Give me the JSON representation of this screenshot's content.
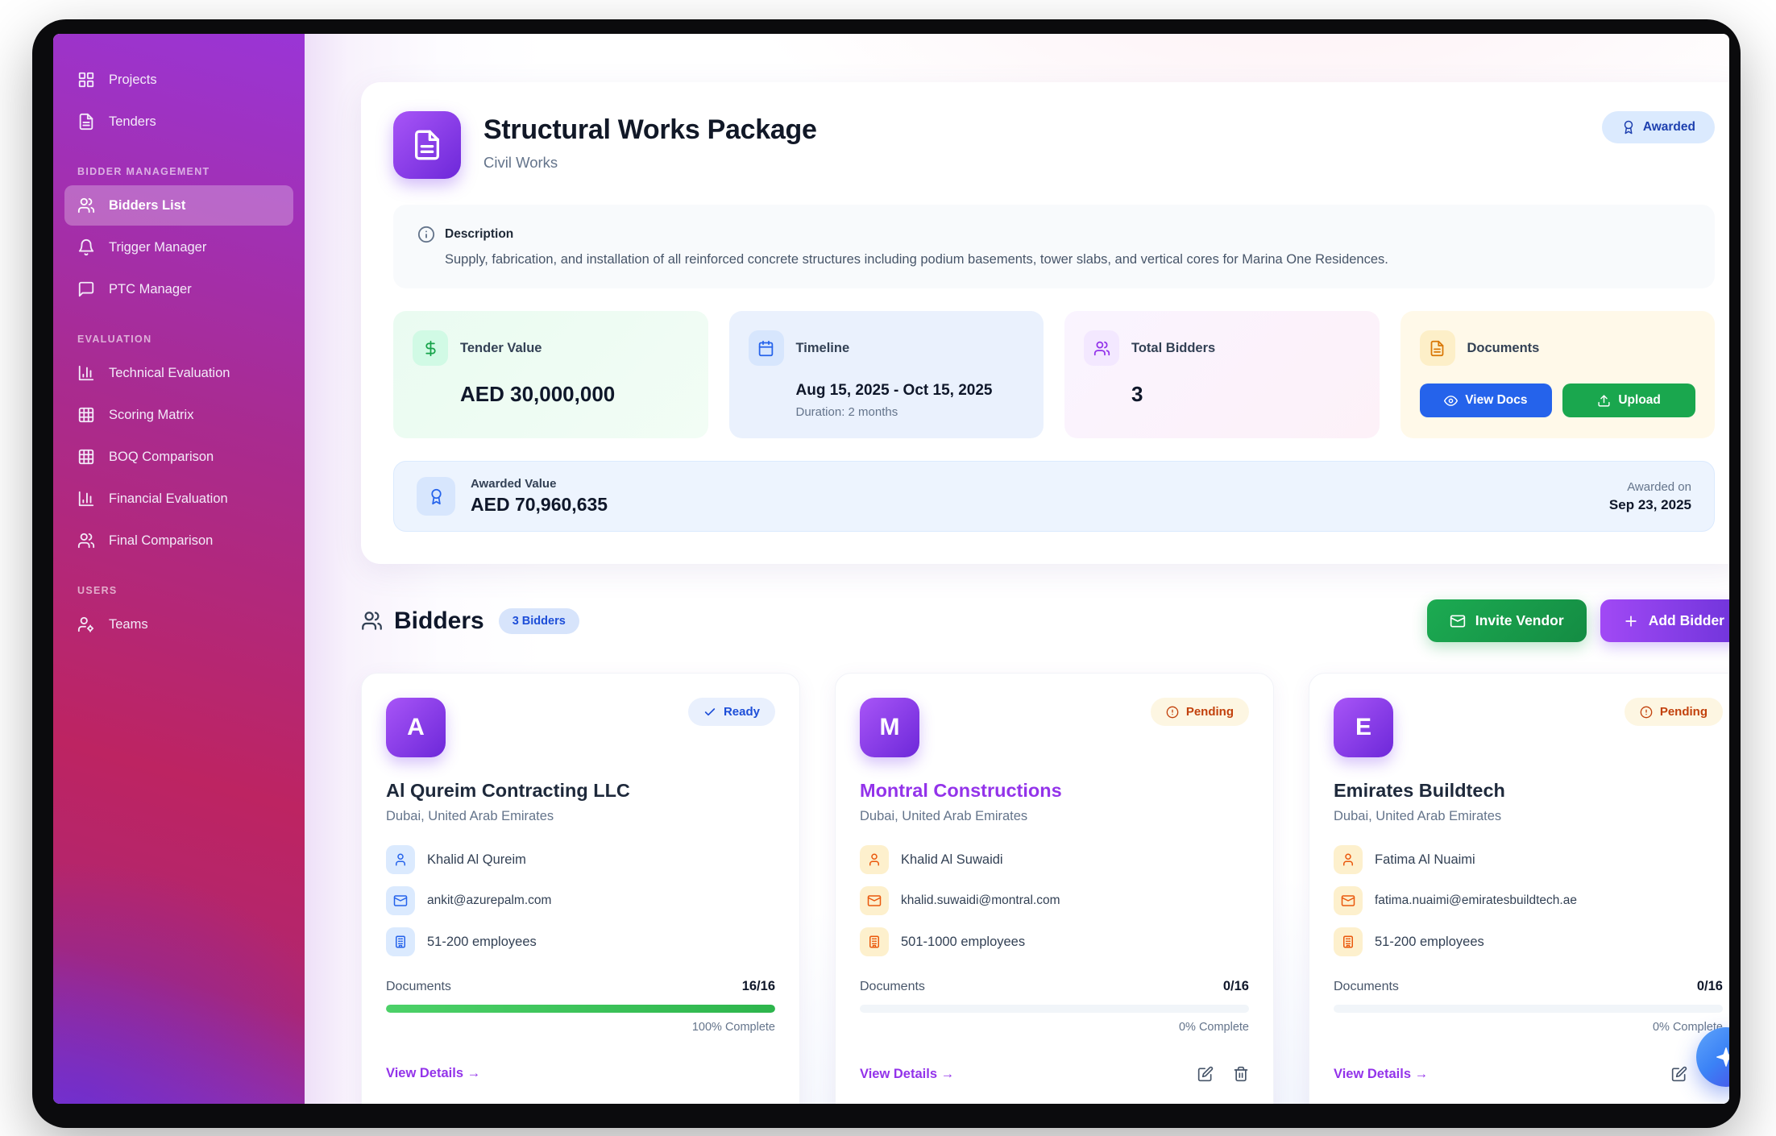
{
  "sidebar": {
    "groups": [
      {
        "items": [
          {
            "icon": "grid-icon",
            "label": "Projects"
          },
          {
            "icon": "file-icon",
            "label": "Tenders"
          }
        ]
      },
      {
        "heading": "BIDDER MANAGEMENT",
        "items": [
          {
            "icon": "users-icon",
            "label": "Bidders List",
            "active": true
          },
          {
            "icon": "bell-icon",
            "label": "Trigger Manager"
          },
          {
            "icon": "chat-icon",
            "label": "PTC Manager"
          }
        ]
      },
      {
        "heading": "EVALUATION",
        "items": [
          {
            "icon": "bar-chart-icon",
            "label": "Technical Evaluation"
          },
          {
            "icon": "table-icon",
            "label": "Scoring Matrix"
          },
          {
            "icon": "table-icon",
            "label": "BOQ Comparison"
          },
          {
            "icon": "bar-chart-icon",
            "label": "Financial Evaluation"
          },
          {
            "icon": "users-icon",
            "label": "Final Comparison"
          }
        ]
      },
      {
        "heading": "USERS",
        "items": [
          {
            "icon": "user-gear-icon",
            "label": "Teams"
          }
        ]
      }
    ]
  },
  "header": {
    "title": "Structural Works Package",
    "subtitle": "Civil Works",
    "status": "Awarded",
    "status_icon": "award-icon"
  },
  "description": {
    "label": "Description",
    "text": "Supply, fabrication, and installation of all reinforced concrete structures including podium basements, tower slabs, and vertical cores for Marina One Residences."
  },
  "stats": {
    "tender_value": {
      "icon": "dollar-icon",
      "label": "Tender Value",
      "value": "AED 30,000,000"
    },
    "timeline": {
      "icon": "calendar-icon",
      "label": "Timeline",
      "range": "Aug 15, 2025 - Oct 15, 2025",
      "duration": "Duration: 2 months"
    },
    "total_bidders": {
      "icon": "users-icon",
      "label": "Total Bidders",
      "count": "3"
    },
    "documents": {
      "icon": "file-icon",
      "label": "Documents",
      "view_button": "View Docs",
      "upload_button": "Upload"
    }
  },
  "awarded": {
    "icon": "award-icon",
    "label": "Awarded Value",
    "value": "AED 70,960,635",
    "on_label": "Awarded on",
    "date": "Sep 23, 2025"
  },
  "bidders": {
    "title": "Bidders",
    "count_badge": "3 Bidders",
    "invite_button": "Invite Vendor",
    "add_button": "Add Bidder",
    "cards": [
      {
        "initial": "A",
        "status": "Ready",
        "status_icon": "check-icon",
        "name": "Al Qureim Contracting LLC",
        "location": "Dubai, United Arab Emirates",
        "contact": "Khalid Al Qureim",
        "email": "ankit@azurepalm.com",
        "employees": "51-200 employees",
        "docs_label": "Documents",
        "docs_count": "16/16",
        "progress": 100,
        "complete": "100% Complete",
        "view_details": "View Details →"
      },
      {
        "initial": "M",
        "status": "Pending",
        "status_icon": "alert-circle-icon",
        "name": "Montral Constructions",
        "location": "Dubai, United Arab Emirates",
        "contact": "Khalid Al Suwaidi",
        "email": "khalid.suwaidi@montral.com",
        "employees": "501-1000 employees",
        "docs_label": "Documents",
        "docs_count": "0/16",
        "progress": 0,
        "complete": "0% Complete",
        "view_details": "View Details →"
      },
      {
        "initial": "E",
        "status": "Pending",
        "status_icon": "alert-circle-icon",
        "name": "Emirates Buildtech",
        "location": "Dubai, United Arab Emirates",
        "contact": "Fatima Al Nuaimi",
        "email": "fatima.nuaimi@emiratesbuildtech.ae",
        "employees": "51-200 employees",
        "docs_label": "Documents",
        "docs_count": "0/16",
        "progress": 0,
        "complete": "0% Complete",
        "view_details": "View Details →"
      }
    ]
  },
  "fab": {
    "icon": "sparkles-icon"
  },
  "colors": {
    "accent_purple": "#9333ea",
    "green": "#16a34a",
    "blue": "#2563eb",
    "orange": "#ea580c",
    "badge_blue_bg": "#dbeafe",
    "badge_blue_text": "#1e40af",
    "pending_bg": "#fdf6e2",
    "pending_text": "#c2410c"
  }
}
